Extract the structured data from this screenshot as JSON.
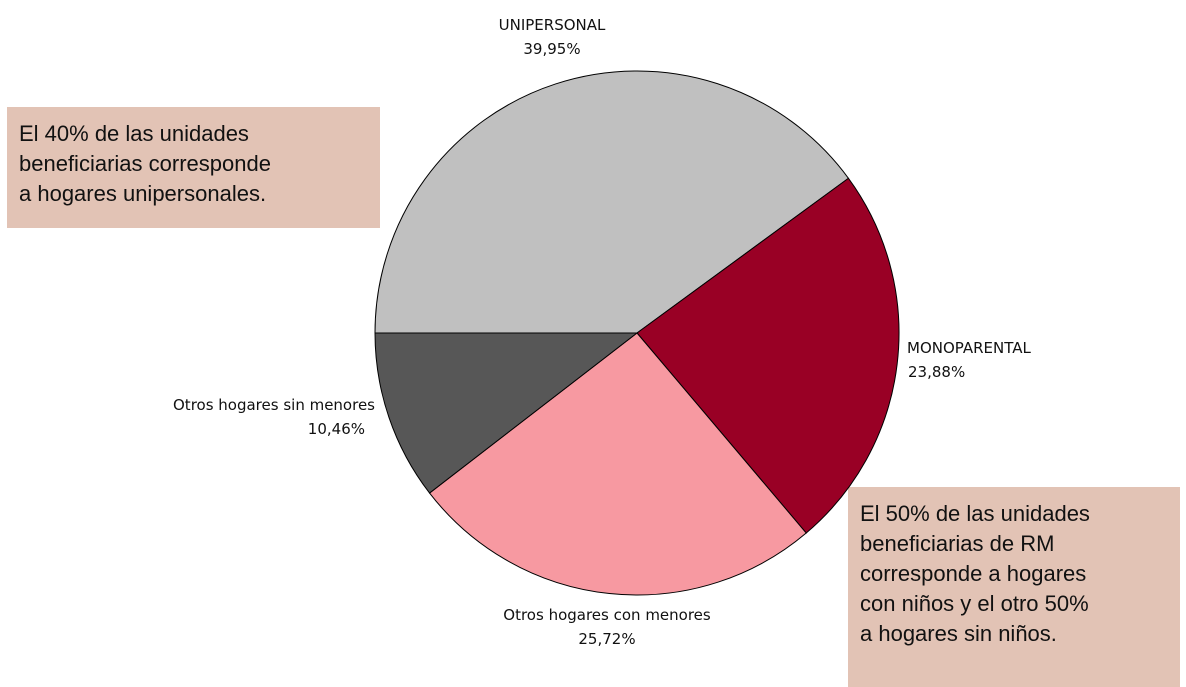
{
  "chart_data": {
    "type": "pie",
    "categories": [
      "UNIPERSONAL",
      "MONOPARENTAL",
      "Otros hogares con menores",
      "Otros hogares sin menores"
    ],
    "values": [
      39.95,
      23.88,
      25.72,
      10.46
    ],
    "value_labels": [
      "39,95%",
      "23,88%",
      "25,72%",
      "10,46%"
    ],
    "colors": [
      "#c0c0c0",
      "#990025",
      "#f799a1",
      "#575757"
    ],
    "annotations": [
      [
        "El 40% de las unidades",
        "beneficiarias corresponde",
        "a hogares unipersonales."
      ],
      [
        "El 50% de las unidades",
        "beneficiarias de RM",
        "corresponde a hogares",
        "con niños y el otro 50%",
        "a hogares sin niños."
      ]
    ]
  }
}
